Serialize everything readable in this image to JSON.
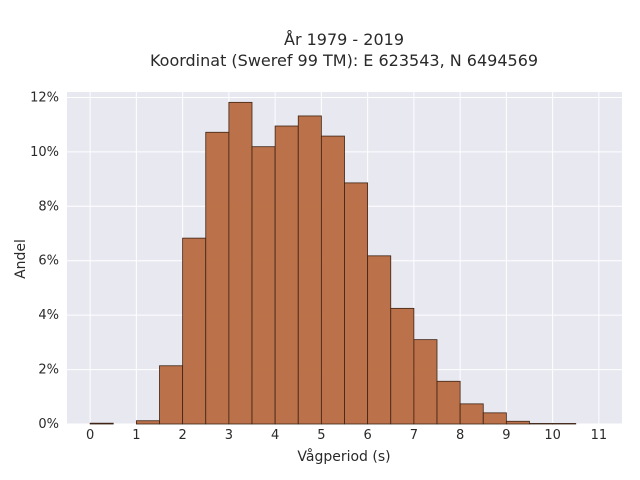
{
  "chart_data": {
    "type": "bar",
    "title_line1": "År 1979 - 2019",
    "title_line2": "Koordinat (Sweref 99 TM): E 623543, N 6494569",
    "xlabel": "Vågperiod (s)",
    "ylabel": "Andel",
    "bin_width": 0.5,
    "bins": [
      {
        "start": 0.0,
        "value": 0.0003
      },
      {
        "start": 0.5,
        "value": 0.0
      },
      {
        "start": 1.0,
        "value": 0.0012
      },
      {
        "start": 1.5,
        "value": 0.0214
      },
      {
        "start": 2.0,
        "value": 0.0683
      },
      {
        "start": 2.5,
        "value": 0.1072
      },
      {
        "start": 3.0,
        "value": 0.1182
      },
      {
        "start": 3.5,
        "value": 0.1019
      },
      {
        "start": 4.0,
        "value": 0.1095
      },
      {
        "start": 4.5,
        "value": 0.1132
      },
      {
        "start": 5.0,
        "value": 0.1058
      },
      {
        "start": 5.5,
        "value": 0.0886
      },
      {
        "start": 6.0,
        "value": 0.0618
      },
      {
        "start": 6.5,
        "value": 0.0425
      },
      {
        "start": 7.0,
        "value": 0.031
      },
      {
        "start": 7.5,
        "value": 0.0157
      },
      {
        "start": 8.0,
        "value": 0.0074
      },
      {
        "start": 8.5,
        "value": 0.0041
      },
      {
        "start": 9.0,
        "value": 0.001
      },
      {
        "start": 9.5,
        "value": 0.0002
      },
      {
        "start": 10.0,
        "value": 0.0002
      }
    ],
    "xlim": [
      -0.5,
      11.5
    ],
    "ylim": [
      0,
      0.122
    ],
    "xticks": [
      0,
      1,
      2,
      3,
      4,
      5,
      6,
      7,
      8,
      9,
      10,
      11
    ],
    "yticks": [
      0,
      0.02,
      0.04,
      0.06,
      0.08,
      0.1,
      0.12
    ],
    "ytick_labels": [
      "0%",
      "2%",
      "4%",
      "6%",
      "8%",
      "10%",
      "12%"
    ],
    "grid": true,
    "colors": {
      "bar_fill": "#b86a3f",
      "bar_stroke": "#3d2314",
      "plot_bg": "#e8e8f0",
      "grid": "#ffffff"
    }
  }
}
